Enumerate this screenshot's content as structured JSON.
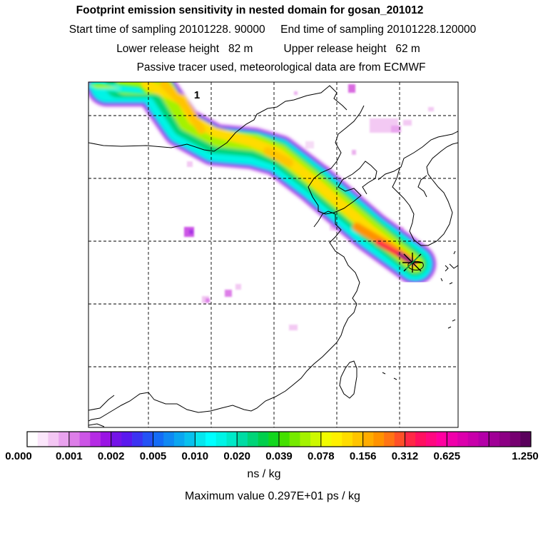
{
  "header": {
    "title": "Footprint emission sensitivity in nested domain for gosan_201012",
    "sampling_line": "Start time of sampling 20101228. 90000     End time of sampling 20101228.120000",
    "height_line": "Lower release height   82 m          Upper release height   62 m",
    "tracer_line": "Passive tracer used, meteorological data are from ECMWF"
  },
  "map": {
    "plume_label": "1",
    "receptor_marker": "star-cross-icon",
    "coastline_color": "#000000",
    "grid_style": "dashed"
  },
  "colorbar": {
    "tick_labels": [
      "0.000",
      "0.001",
      "0.002",
      "0.005",
      "0.010",
      "0.020",
      "0.039",
      "0.078",
      "0.156",
      "0.312",
      "0.625",
      "1.250"
    ],
    "colors": [
      [
        "#ffffff",
        "#fbe6fb",
        "#f3c6f3",
        "#e9a2ee"
      ],
      [
        "#dd7ee8",
        "#cc55e6",
        "#b52be4",
        "#9a14e4"
      ],
      [
        "#7413e8",
        "#5a18ee",
        "#3c33f2",
        "#2452f5"
      ],
      [
        "#146cf6",
        "#1089f3",
        "#0ba6f0",
        "#08c1ee"
      ],
      [
        "#06e6ee",
        "#00ffff",
        "#00f4e6",
        "#00e9c8"
      ],
      [
        "#00dca4",
        "#00d478",
        "#00cf4c",
        "#12d61e"
      ],
      [
        "#44e000",
        "#76ea00",
        "#a4f200",
        "#cdf800"
      ],
      [
        "#f2fc00",
        "#fff000",
        "#ffdc00",
        "#ffc400"
      ],
      [
        "#ffac00",
        "#ff9200",
        "#ff7414",
        "#ff5028"
      ],
      [
        "#ff2846",
        "#ff1060",
        "#ff0880",
        "#ff00a0"
      ],
      [
        "#f000aa",
        "#dc00ac",
        "#c800aa",
        "#b400a8"
      ],
      [
        "#a00096",
        "#8c0084",
        "#760070",
        "#5a005c"
      ]
    ],
    "units": "ns / kg",
    "max_value_line": "Maximum value  0.297E+01 ps / kg"
  }
}
